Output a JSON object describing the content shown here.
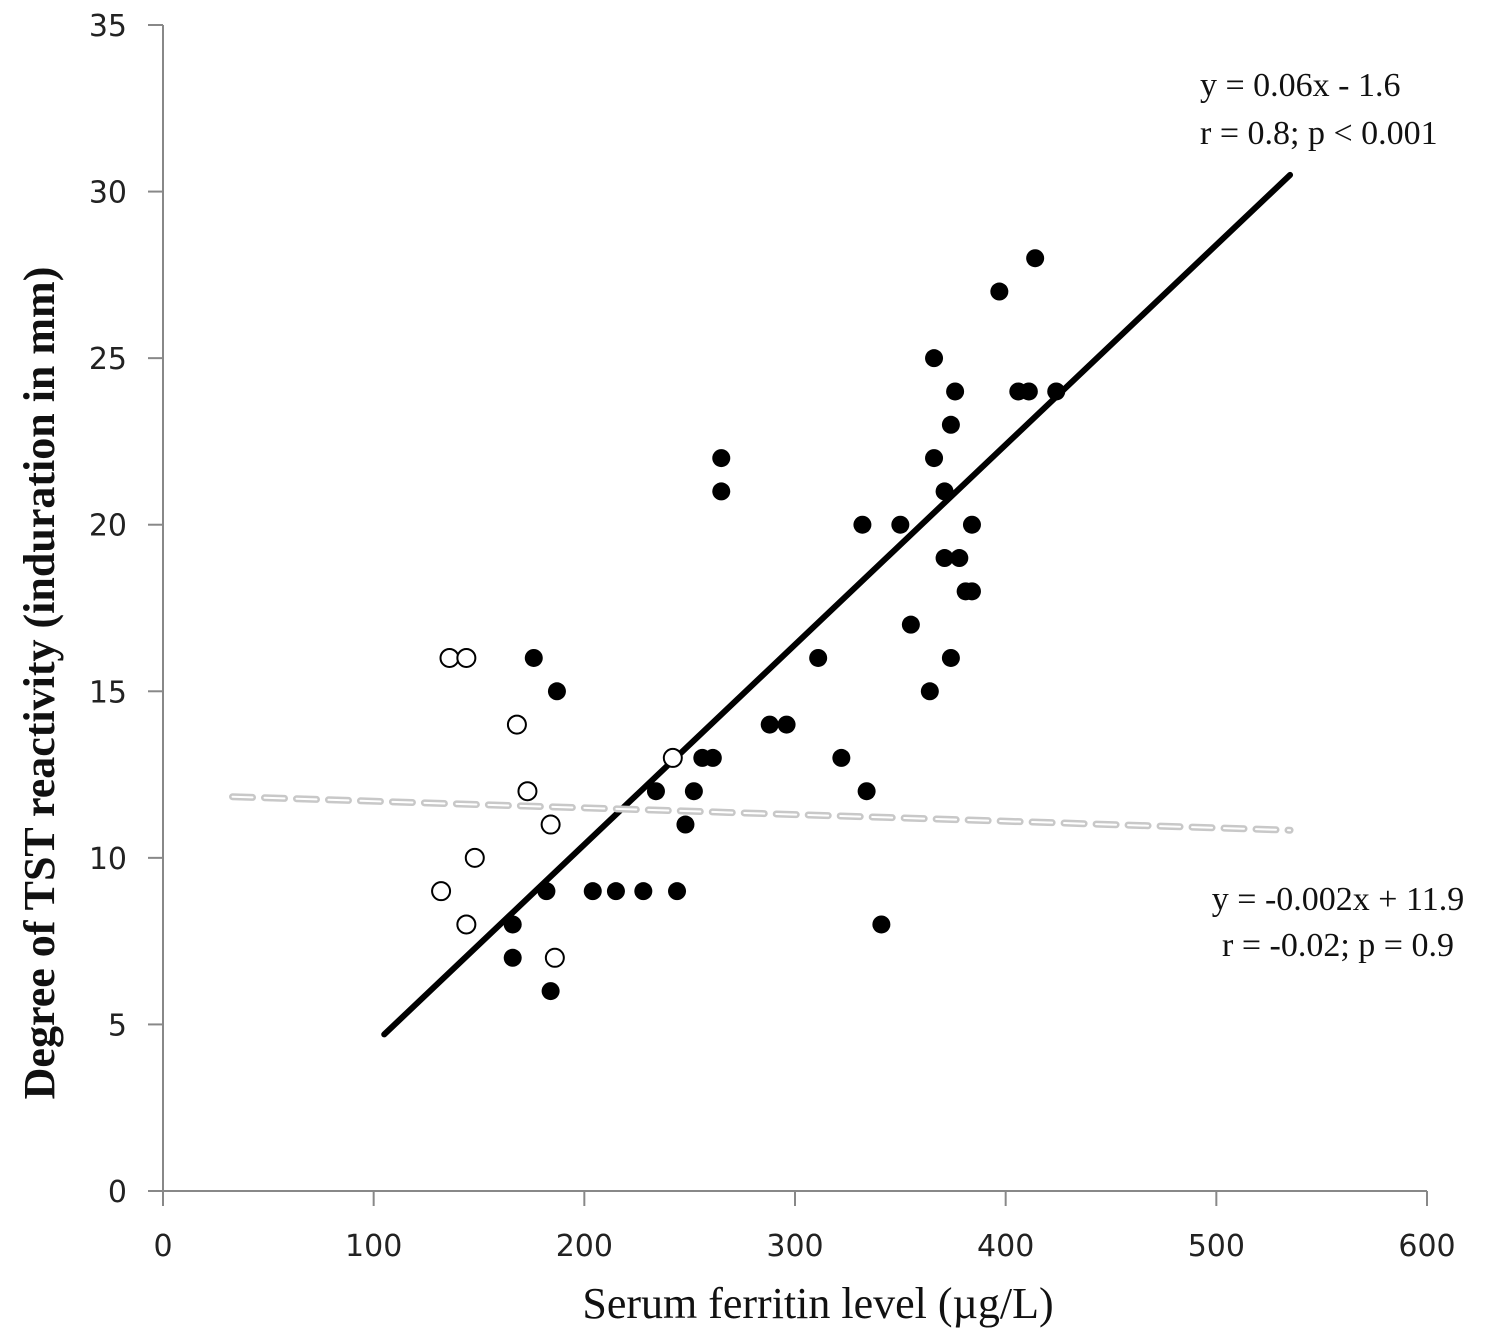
{
  "chart_data": {
    "type": "scatter",
    "title": "",
    "xlabel": "Serum ferritin level (µg/L)",
    "ylabel": "Degree of TST reactivity (induration in mm)",
    "xlim": [
      0,
      600
    ],
    "ylim": [
      0,
      35
    ],
    "xticks": [
      0,
      100,
      200,
      300,
      400,
      500,
      600
    ],
    "yticks": [
      0,
      5,
      10,
      15,
      20,
      25,
      30,
      35
    ],
    "grid": false,
    "legend": "none",
    "series": [
      {
        "name": "filled",
        "marker": "filled-circle",
        "color": "#000000",
        "points": [
          [
            176,
            16
          ],
          [
            187,
            15
          ],
          [
            166,
            8
          ],
          [
            166,
            7
          ],
          [
            182,
            9
          ],
          [
            184,
            6
          ],
          [
            204,
            9
          ],
          [
            215,
            9
          ],
          [
            228,
            9
          ],
          [
            244,
            9
          ],
          [
            234,
            12
          ],
          [
            252,
            12
          ],
          [
            248,
            11
          ],
          [
            256,
            13
          ],
          [
            261,
            13
          ],
          [
            265,
            22
          ],
          [
            265,
            21
          ],
          [
            288,
            14
          ],
          [
            296,
            14
          ],
          [
            311,
            16
          ],
          [
            322,
            13
          ],
          [
            334,
            12
          ],
          [
            341,
            8
          ],
          [
            332,
            20
          ],
          [
            350,
            20
          ],
          [
            355,
            17
          ],
          [
            364,
            15
          ],
          [
            366,
            25
          ],
          [
            366,
            22
          ],
          [
            371,
            21
          ],
          [
            371,
            19
          ],
          [
            378,
            19
          ],
          [
            374,
            23
          ],
          [
            376,
            24
          ],
          [
            374,
            16
          ],
          [
            384,
            20
          ],
          [
            381,
            18
          ],
          [
            384,
            18
          ],
          [
            397,
            27
          ],
          [
            414,
            28
          ],
          [
            406,
            24
          ],
          [
            411,
            24
          ],
          [
            424,
            24
          ]
        ]
      },
      {
        "name": "open",
        "marker": "open-circle",
        "color": "#000000",
        "points": [
          [
            132,
            9
          ],
          [
            136,
            16
          ],
          [
            144,
            16
          ],
          [
            144,
            8
          ],
          [
            148,
            10
          ],
          [
            168,
            14
          ],
          [
            173,
            12
          ],
          [
            184,
            11
          ],
          [
            186,
            7
          ],
          [
            242,
            13
          ]
        ]
      }
    ],
    "trendlines": [
      {
        "name": "filled-fit",
        "slope": 0.06,
        "intercept": -1.6,
        "x_range": [
          105,
          535
        ],
        "style": "solid",
        "color": "#000000",
        "label_lines": [
          "y = 0.06x - 1.6",
          "r = 0.8; p < 0.001"
        ],
        "label_position": "top-right"
      },
      {
        "name": "open-fit",
        "slope": -0.002,
        "intercept": 11.9,
        "x_range": [
          33,
          535
        ],
        "style": "dashed",
        "color": "#c8c8c8",
        "label_lines": [
          "y = -0.002x + 11.9",
          "r = -0.02; p = 0.9"
        ],
        "label_position": "right"
      }
    ]
  }
}
